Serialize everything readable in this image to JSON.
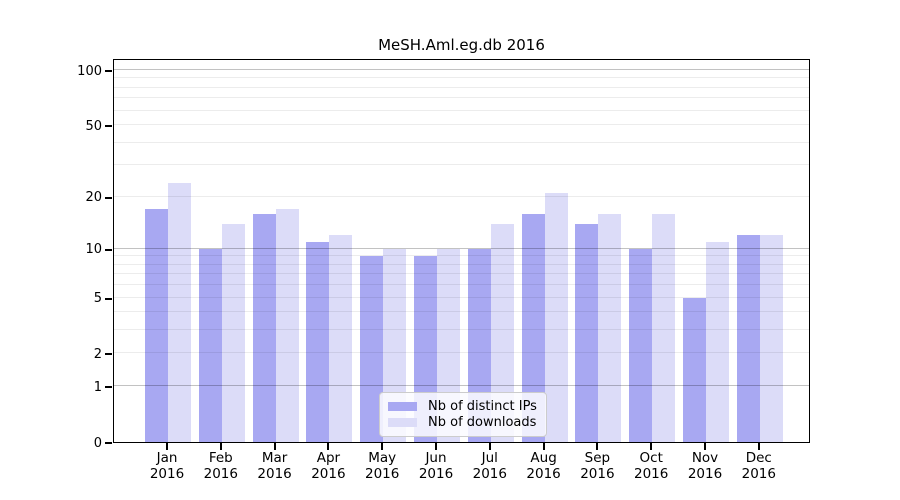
{
  "chart_data": {
    "type": "bar",
    "title": "MeSH.Aml.eg.db 2016",
    "xlabel": "",
    "ylabel": "",
    "y_scale": "log1p",
    "ylim": [
      0,
      100
    ],
    "yticks": [
      0,
      1,
      2,
      5,
      10,
      20,
      50,
      100
    ],
    "minor_gridlines": [
      2,
      3,
      4,
      5,
      6,
      7,
      8,
      9,
      20,
      30,
      40,
      50,
      60,
      70,
      80,
      90
    ],
    "major_gridlines": [
      1,
      10,
      100
    ],
    "grid": true,
    "categories": [
      "Jan",
      "Feb",
      "Mar",
      "Apr",
      "May",
      "Jun",
      "Jul",
      "Aug",
      "Sep",
      "Oct",
      "Nov",
      "Dec"
    ],
    "category_year": "2016",
    "series": [
      {
        "name": "Nb of distinct IPs",
        "color": "#a8a8f2",
        "values": [
          17,
          10,
          16,
          11,
          9,
          9,
          10,
          16,
          14,
          10,
          5,
          12
        ]
      },
      {
        "name": "Nb of downloads",
        "color": "#dcdcf8",
        "values": [
          24,
          14,
          17,
          12,
          10,
          10,
          14,
          21,
          16,
          16,
          11,
          12
        ]
      }
    ],
    "legend_position": "bottom-center",
    "axis_color": "#000000",
    "background_color": "#ffffff"
  }
}
